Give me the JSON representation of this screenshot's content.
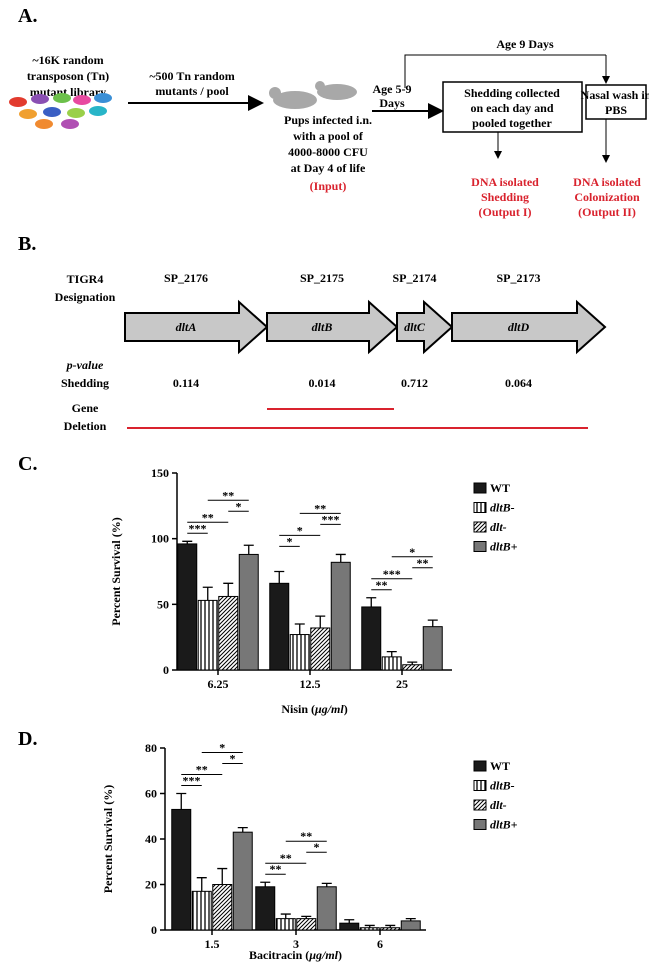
{
  "panel_a": {
    "label": "A.",
    "library": [
      "~16K random",
      "transposon (Tn)",
      "mutant library"
    ],
    "pool": [
      "~500 Tn random",
      "mutants / pool"
    ],
    "infection": [
      "Pups infected i.n.",
      "with a pool of",
      "4000-8000 CFU",
      "at Day 4 of life"
    ],
    "input": "(Input)",
    "age_range": [
      "Age 5-9",
      "Days"
    ],
    "age_day": "Age 9 Days",
    "shedding_box": [
      "Shedding collected",
      "on each day and",
      "pooled together"
    ],
    "nasal_box": [
      "Nasal wash in",
      "PBS"
    ],
    "output_1": [
      "DNA isolated",
      "Shedding",
      "(Output I)"
    ],
    "output_2": [
      "DNA isolated",
      "Colonization",
      "(Output II)"
    ]
  },
  "panel_b": {
    "label": "B.",
    "designation_label": [
      "TIGR4",
      "Designation"
    ],
    "pvalue_label": "p-value",
    "shedding_label": "Shedding",
    "deletion_label": [
      "Gene",
      "Deletion"
    ],
    "genes": [
      {
        "locus": "SP_2176",
        "name": "dltA",
        "p_value": 0.114
      },
      {
        "locus": "SP_2175",
        "name": "dltB",
        "p_value": 0.014
      },
      {
        "locus": "SP_2174",
        "name": "dltC",
        "p_value": 0.712
      },
      {
        "locus": "SP_2173",
        "name": "dltD",
        "p_value": 0.064
      }
    ]
  },
  "chart_data": [
    {
      "type": "bar",
      "panel_label": "C.",
      "ylabel": "Percent Survival (%)",
      "xlabel": [
        "Nisin (",
        "μg/ml",
        ")"
      ],
      "categories": [
        "6.25",
        "12.5",
        "25"
      ],
      "ylim": [
        0,
        150
      ],
      "yticks": [
        0,
        50,
        100,
        150
      ],
      "series": [
        {
          "name": "WT",
          "color": "#1a1a1a",
          "pattern": "solid",
          "italic": false,
          "values": [
            96,
            66,
            48
          ],
          "errors": [
            2,
            9,
            7
          ]
        },
        {
          "name": "dltB-",
          "color": "#000000",
          "pattern": "vertical",
          "italic": true,
          "values": [
            53,
            27,
            10
          ],
          "errors": [
            10,
            8,
            4
          ]
        },
        {
          "name": "dlt-",
          "color": "#000000",
          "pattern": "diagonal",
          "italic": true,
          "values": [
            56,
            32,
            4
          ],
          "errors": [
            10,
            9,
            2
          ]
        },
        {
          "name": "dltB+",
          "color": "#777777",
          "pattern": "solid",
          "italic": true,
          "values": [
            88,
            82,
            33
          ],
          "errors": [
            7,
            6,
            5
          ]
        }
      ],
      "annotations": [
        {
          "label": "***",
          "category": 0,
          "series": [
            0,
            1
          ]
        },
        {
          "label": "**",
          "category": 0,
          "series": [
            0,
            2
          ]
        },
        {
          "label": "*",
          "category": 0,
          "series": [
            2,
            3
          ]
        },
        {
          "label": "**",
          "category": 0,
          "series": [
            1,
            3
          ]
        },
        {
          "label": "*",
          "category": 1,
          "series": [
            0,
            1
          ]
        },
        {
          "label": "*",
          "category": 1,
          "series": [
            0,
            2
          ]
        },
        {
          "label": "***",
          "category": 1,
          "series": [
            2,
            3
          ]
        },
        {
          "label": "**",
          "category": 1,
          "series": [
            1,
            3
          ]
        },
        {
          "label": "**",
          "category": 2,
          "series": [
            0,
            1
          ]
        },
        {
          "label": "***",
          "category": 2,
          "series": [
            0,
            2
          ]
        },
        {
          "label": "**",
          "category": 2,
          "series": [
            2,
            3
          ]
        },
        {
          "label": "*",
          "category": 2,
          "series": [
            1,
            3
          ]
        }
      ]
    },
    {
      "type": "bar",
      "panel_label": "D.",
      "ylabel": "Percent Survival (%)",
      "xlabel": [
        "Bacitracin (",
        "μg/ml",
        ")"
      ],
      "categories": [
        "1.5",
        "3",
        "6"
      ],
      "ylim": [
        0,
        80
      ],
      "yticks": [
        0,
        20,
        40,
        60,
        80
      ],
      "series": [
        {
          "name": "WT",
          "color": "#1a1a1a",
          "pattern": "solid",
          "italic": false,
          "values": [
            53,
            19,
            3
          ],
          "errors": [
            7,
            2,
            1.5
          ]
        },
        {
          "name": "dltB-",
          "color": "#000000",
          "pattern": "vertical",
          "italic": true,
          "values": [
            17,
            5,
            1
          ],
          "errors": [
            6,
            2,
            1
          ]
        },
        {
          "name": "dlt-",
          "color": "#000000",
          "pattern": "diagonal",
          "italic": true,
          "values": [
            20,
            5,
            1
          ],
          "errors": [
            7,
            1,
            1
          ]
        },
        {
          "name": "dltB+",
          "color": "#777777",
          "pattern": "solid",
          "italic": true,
          "values": [
            43,
            19,
            4
          ],
          "errors": [
            2,
            1.5,
            1
          ]
        }
      ],
      "annotations": [
        {
          "label": "***",
          "category": 0,
          "series": [
            0,
            1
          ]
        },
        {
          "label": "**",
          "category": 0,
          "series": [
            0,
            2
          ]
        },
        {
          "label": "*",
          "category": 0,
          "series": [
            2,
            3
          ]
        },
        {
          "label": "*",
          "category": 0,
          "series": [
            1,
            3
          ]
        },
        {
          "label": "**",
          "category": 1,
          "series": [
            0,
            1
          ]
        },
        {
          "label": "**",
          "category": 1,
          "series": [
            0,
            2
          ]
        },
        {
          "label": "*",
          "category": 1,
          "series": [
            2,
            3
          ]
        },
        {
          "label": "**",
          "category": 1,
          "series": [
            1,
            3
          ]
        }
      ]
    }
  ]
}
